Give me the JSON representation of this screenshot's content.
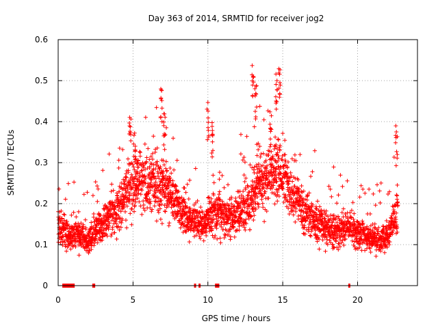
{
  "chart_data": {
    "type": "scatter",
    "title": "Day 363 of 2014, SRMTID for receiver jog2",
    "xlabel": "GPS time / hours",
    "ylabel": "SRMTID / TECUs",
    "xlim": [
      0,
      24
    ],
    "ylim": [
      0,
      0.6
    ],
    "x_ticks": [
      0,
      5,
      10,
      15,
      20
    ],
    "x_tick_labels": [
      "0",
      "5",
      "10",
      "15",
      "20"
    ],
    "y_ticks": [
      0,
      0.1,
      0.2,
      0.3,
      0.4,
      0.5,
      0.6
    ],
    "y_tick_labels": [
      "0",
      "0.1",
      "0.2",
      "0.3",
      "0.4",
      "0.5",
      "0.6"
    ],
    "grid": true,
    "marker": "plus",
    "color": "#ff0000",
    "series": [
      {
        "name": "SRMTID",
        "profile": [
          [
            0.0,
            0.14
          ],
          [
            0.5,
            0.13
          ],
          [
            1.0,
            0.12
          ],
          [
            1.5,
            0.13
          ],
          [
            2.0,
            0.11
          ],
          [
            2.5,
            0.13
          ],
          [
            3.0,
            0.15
          ],
          [
            3.5,
            0.17
          ],
          [
            4.0,
            0.19
          ],
          [
            4.5,
            0.22
          ],
          [
            5.0,
            0.24
          ],
          [
            5.5,
            0.25
          ],
          [
            6.0,
            0.24
          ],
          [
            6.5,
            0.26
          ],
          [
            7.0,
            0.25
          ],
          [
            7.5,
            0.22
          ],
          [
            8.0,
            0.19
          ],
          [
            8.5,
            0.17
          ],
          [
            9.0,
            0.16
          ],
          [
            9.5,
            0.15
          ],
          [
            10.0,
            0.16
          ],
          [
            10.5,
            0.18
          ],
          [
            11.0,
            0.17
          ],
          [
            11.5,
            0.16
          ],
          [
            12.0,
            0.18
          ],
          [
            12.5,
            0.2
          ],
          [
            13.0,
            0.22
          ],
          [
            13.5,
            0.25
          ],
          [
            14.0,
            0.27
          ],
          [
            14.5,
            0.28
          ],
          [
            15.0,
            0.27
          ],
          [
            15.5,
            0.23
          ],
          [
            16.0,
            0.2
          ],
          [
            16.5,
            0.18
          ],
          [
            17.0,
            0.16
          ],
          [
            17.5,
            0.15
          ],
          [
            18.0,
            0.14
          ],
          [
            18.5,
            0.13
          ],
          [
            19.0,
            0.14
          ],
          [
            19.5,
            0.15
          ],
          [
            20.0,
            0.13
          ],
          [
            20.5,
            0.12
          ],
          [
            21.0,
            0.12
          ],
          [
            21.5,
            0.11
          ],
          [
            22.0,
            0.12
          ],
          [
            22.5,
            0.16
          ],
          [
            22.7,
            0.2
          ]
        ],
        "peaks": [
          {
            "x": 4.8,
            "y": 0.44
          },
          {
            "x": 5.1,
            "y": 0.4
          },
          {
            "x": 6.9,
            "y": 0.48
          },
          {
            "x": 7.1,
            "y": 0.43
          },
          {
            "x": 10.0,
            "y": 0.45
          },
          {
            "x": 10.3,
            "y": 0.4
          },
          {
            "x": 13.0,
            "y": 0.55
          },
          {
            "x": 13.2,
            "y": 0.5
          },
          {
            "x": 14.8,
            "y": 0.55
          },
          {
            "x": 14.6,
            "y": 0.52
          },
          {
            "x": 14.2,
            "y": 0.44
          },
          {
            "x": 22.6,
            "y": 0.39
          }
        ],
        "zero_gaps": [
          [
            0.3,
            1.1
          ],
          [
            2.3,
            2.45
          ],
          [
            9.1,
            9.2
          ],
          [
            9.4,
            9.5
          ],
          [
            10.5,
            10.75
          ],
          [
            19.4,
            19.5
          ]
        ]
      }
    ]
  }
}
